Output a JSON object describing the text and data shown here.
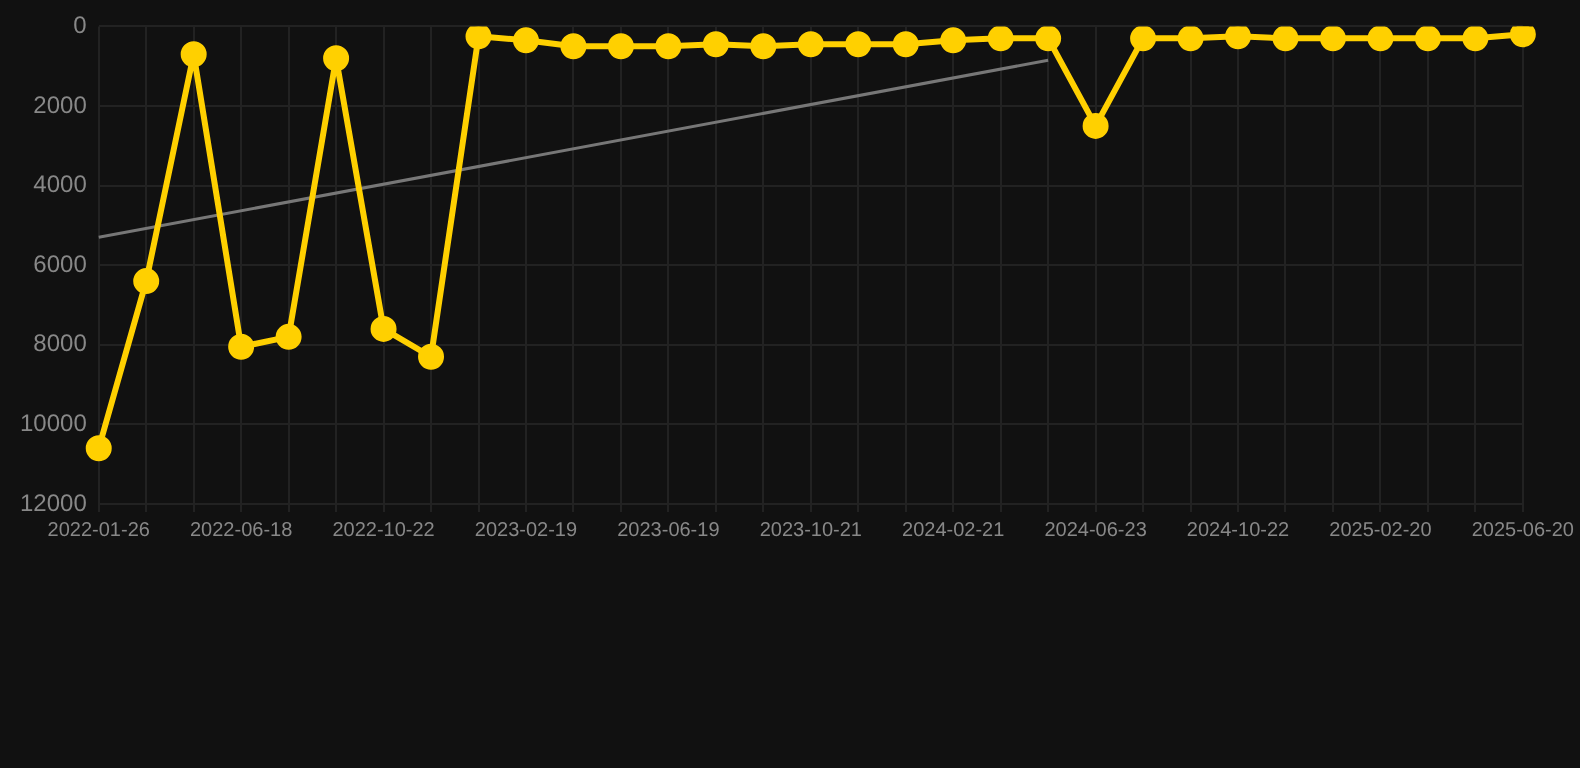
{
  "chart_data": {
    "type": "line",
    "categories": [
      "2022-01-26",
      null,
      null,
      "2022-06-18",
      null,
      null,
      "2022-10-22",
      null,
      null,
      "2023-02-19",
      null,
      null,
      "2023-06-19",
      null,
      null,
      "2023-10-21",
      null,
      null,
      "2024-02-21",
      null,
      null,
      "2024-06-23",
      null,
      null,
      "2024-10-22",
      null,
      null,
      "2025-02-20",
      null,
      null,
      "2025-06-20"
    ],
    "series": [
      {
        "color": "#ffd000",
        "marker": "circle",
        "values": [
          10600,
          6400,
          700,
          8050,
          7800,
          800,
          7600,
          8300,
          250,
          350,
          500,
          500,
          500,
          450,
          500,
          450,
          450,
          450,
          350,
          300,
          300,
          2500,
          300,
          300,
          250,
          300,
          300,
          300,
          300,
          300,
          200
        ]
      },
      {
        "type": "line",
        "color": "#777777",
        "marker": "none",
        "values": [
          5300,
          null,
          null,
          null,
          null,
          null,
          null,
          null,
          null,
          null,
          null,
          null,
          null,
          null,
          null,
          null,
          null,
          null,
          null,
          null,
          850,
          null,
          null,
          null,
          null,
          null,
          null,
          null,
          null,
          null,
          null
        ]
      }
    ],
    "ylim": [
      12000,
      0
    ],
    "yticks": [
      0,
      2000,
      4000,
      6000,
      8000,
      10000,
      12000
    ],
    "grid": true,
    "legend": false
  }
}
